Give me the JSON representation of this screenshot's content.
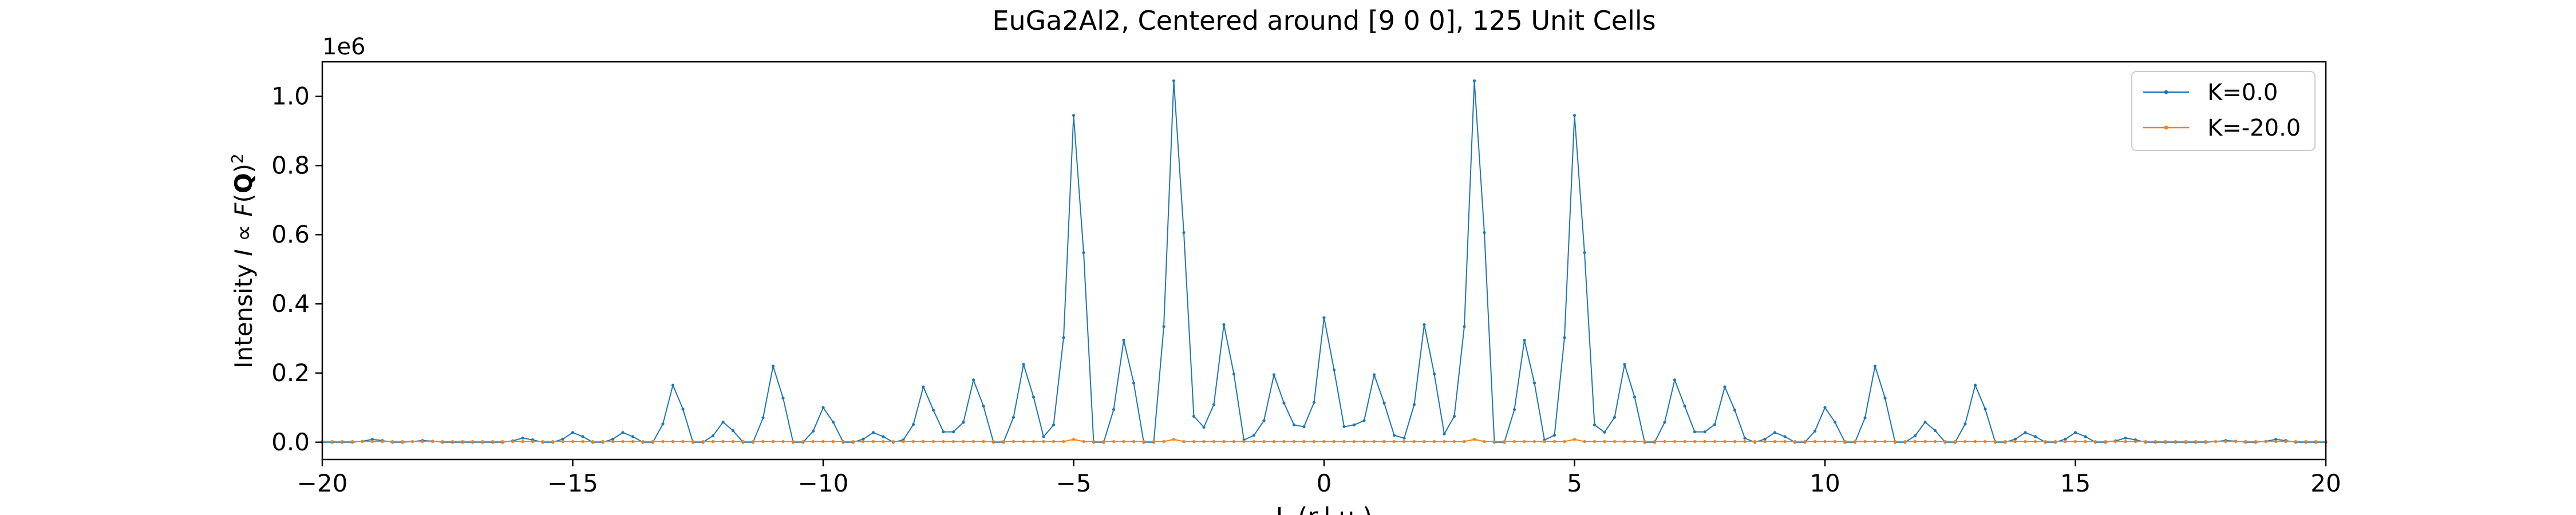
{
  "chart_data": {
    "type": "line",
    "title": "EuGa2Al2, Centered around [9 0 0], 125 Unit Cells",
    "xlabel": "L (r.l.u.)",
    "ylabel": "Intensity I ∝ F(Q)²",
    "ylabel_parts": {
      "a": "Intensity ",
      "b": "I",
      "c": " ∝ ",
      "d": "F",
      "e": "(",
      "f": "Q",
      "g": ")",
      "h": "2"
    },
    "y_offset_label": "1e6",
    "xlim": [
      -20,
      20
    ],
    "ylim": [
      -0.05,
      1.1
    ],
    "y_scale_factor": 1000000,
    "x_ticks": [
      -20,
      -15,
      -10,
      -5,
      0,
      5,
      10,
      15,
      20
    ],
    "x_tick_labels": [
      "−20",
      "−15",
      "−10",
      "−5",
      "0",
      "5",
      "10",
      "15",
      "20"
    ],
    "y_ticks": [
      0.0,
      0.2,
      0.4,
      0.6,
      0.8,
      1.0
    ],
    "y_tick_labels": [
      "0.0",
      "0.2",
      "0.4",
      "0.6",
      "0.8",
      "1.0"
    ],
    "grid": false,
    "legend_position": "top-right",
    "series": [
      {
        "name": "K=0.0",
        "color": "#1f77b4",
        "x_step": 0.2,
        "x_start": -20,
        "x_end": 20,
        "peaks": [
          {
            "l": -19,
            "h": 0.008
          },
          {
            "l": -18,
            "h": 0.005
          },
          {
            "l": -16,
            "h": 0.012
          },
          {
            "l": -15,
            "h": 0.028
          },
          {
            "l": -14,
            "h": 0.028
          },
          {
            "l": -13,
            "h": 0.165
          },
          {
            "l": -12,
            "h": 0.058
          },
          {
            "l": -11,
            "h": 0.22
          },
          {
            "l": -10,
            "h": 0.1
          },
          {
            "l": -9,
            "h": 0.028
          },
          {
            "l": -8.2,
            "h": 0.02
          },
          {
            "l": -8,
            "h": 0.16
          },
          {
            "l": -7.6,
            "h": 0.03
          },
          {
            "l": -7.4,
            "h": 0.03
          },
          {
            "l": -7.2,
            "h": 0.03
          },
          {
            "l": -7,
            "h": 0.18
          },
          {
            "l": -6,
            "h": 0.225
          },
          {
            "l": -5.4,
            "h": 0.05
          },
          {
            "l": -5,
            "h": 0.945
          },
          {
            "l": -4,
            "h": 0.295
          },
          {
            "l": -3,
            "h": 1.045
          },
          {
            "l": -2.6,
            "h": 0.075
          },
          {
            "l": -2,
            "h": 0.34
          },
          {
            "l": -1.4,
            "h": 0.02
          },
          {
            "l": -1,
            "h": 0.195
          },
          {
            "l": -0.6,
            "h": 0.05
          },
          {
            "l": -0.4,
            "h": 0.045
          },
          {
            "l": -0.2,
            "h": 0.05
          },
          {
            "l": 0,
            "h": 0.36
          },
          {
            "l": 0.2,
            "h": 0.05
          },
          {
            "l": 0.4,
            "h": 0.045
          },
          {
            "l": 0.6,
            "h": 0.05
          },
          {
            "l": 1,
            "h": 0.195
          },
          {
            "l": 1.4,
            "h": 0.02
          },
          {
            "l": 2,
            "h": 0.34
          },
          {
            "l": 2.6,
            "h": 0.075
          },
          {
            "l": 3,
            "h": 1.045
          },
          {
            "l": 4,
            "h": 0.295
          },
          {
            "l": 4.6,
            "h": 0.02
          },
          {
            "l": 5,
            "h": 0.945
          },
          {
            "l": 5.4,
            "h": 0.05
          },
          {
            "l": 6,
            "h": 0.225
          },
          {
            "l": 7,
            "h": 0.18
          },
          {
            "l": 7.2,
            "h": 0.03
          },
          {
            "l": 7.4,
            "h": 0.03
          },
          {
            "l": 7.6,
            "h": 0.03
          },
          {
            "l": 8,
            "h": 0.16
          },
          {
            "l": 8.2,
            "h": 0.02
          },
          {
            "l": 9,
            "h": 0.028
          },
          {
            "l": 10,
            "h": 0.1
          },
          {
            "l": 11,
            "h": 0.22
          },
          {
            "l": 12,
            "h": 0.058
          },
          {
            "l": 13,
            "h": 0.165
          },
          {
            "l": 14,
            "h": 0.028
          },
          {
            "l": 15,
            "h": 0.028
          },
          {
            "l": 16,
            "h": 0.012
          },
          {
            "l": 18,
            "h": 0.005
          },
          {
            "l": 19,
            "h": 0.008
          }
        ],
        "peak_shape": [
          {
            "dx": -0.2,
            "f": 0.32
          },
          {
            "dx": 0.0,
            "f": 1.0
          },
          {
            "dx": 0.2,
            "f": 0.58
          }
        ],
        "shape_note_multi": "intensity units ×1e6"
      },
      {
        "name": "K=-20.0",
        "color": "#ff7f0e",
        "x_step": 0.2,
        "x_start": -20,
        "x_end": 20,
        "y_level": 0.002,
        "y_bumps": [
          {
            "l": -5,
            "h": 0.008
          },
          {
            "l": -3,
            "h": 0.008
          },
          {
            "l": 3,
            "h": 0.008
          },
          {
            "l": 5,
            "h": 0.008
          }
        ]
      }
    ]
  }
}
